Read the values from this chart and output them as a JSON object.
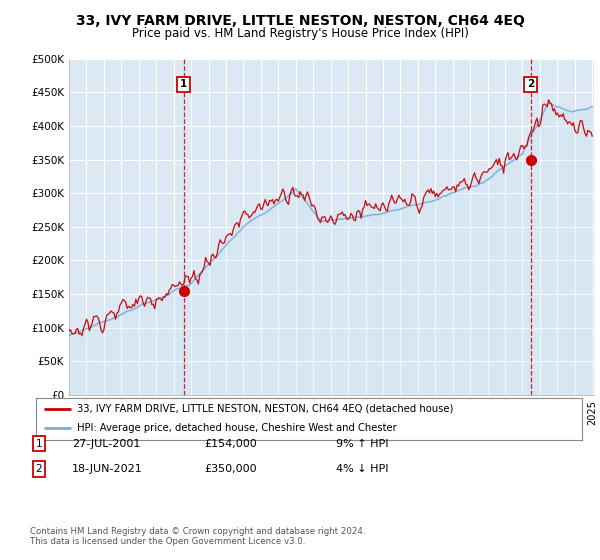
{
  "title": "33, IVY FARM DRIVE, LITTLE NESTON, NESTON, CH64 4EQ",
  "subtitle": "Price paid vs. HM Land Registry's House Price Index (HPI)",
  "ylim": [
    0,
    500000
  ],
  "yticks": [
    0,
    50000,
    100000,
    150000,
    200000,
    250000,
    300000,
    350000,
    400000,
    450000,
    500000
  ],
  "ytick_labels": [
    "£0",
    "£50K",
    "£100K",
    "£150K",
    "£200K",
    "£250K",
    "£300K",
    "£350K",
    "£400K",
    "£450K",
    "£500K"
  ],
  "x_start_year": 1995,
  "x_end_year": 2025,
  "bg_color": "#ffffff",
  "plot_bg_color": "#dce9f5",
  "hpi_color": "#7aaed6",
  "price_color": "#cc0000",
  "fill_color": "#c8dff0",
  "vline_color": "#cc0000",
  "transaction1_date": 2001.57,
  "transaction1_price": 154000,
  "transaction2_date": 2021.46,
  "transaction2_price": 350000,
  "legend_line1": "33, IVY FARM DRIVE, LITTLE NESTON, NESTON, CH64 4EQ (detached house)",
  "legend_line2": "HPI: Average price, detached house, Cheshire West and Chester",
  "table_row1_num": "1",
  "table_row1_date": "27-JUL-2001",
  "table_row1_price": "£154,000",
  "table_row1_hpi": "9% ↑ HPI",
  "table_row2_num": "2",
  "table_row2_date": "18-JUN-2021",
  "table_row2_price": "£350,000",
  "table_row2_hpi": "4% ↓ HPI",
  "footer": "Contains HM Land Registry data © Crown copyright and database right 2024.\nThis data is licensed under the Open Government Licence v3.0."
}
